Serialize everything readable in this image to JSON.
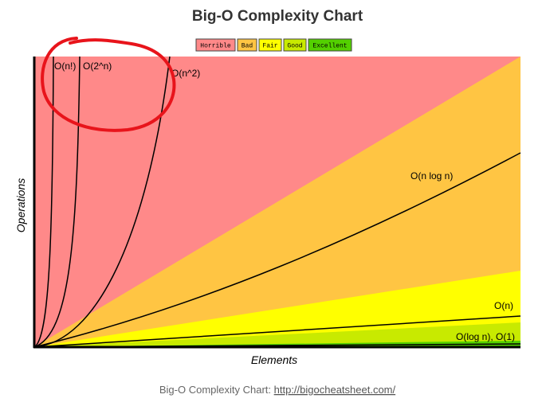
{
  "title": "Big-O Complexity Chart",
  "legend": [
    "Horrible",
    "Bad",
    "Fair",
    "Good",
    "Excellent"
  ],
  "curve_labels": [
    "O(n!)",
    "O(2^n)",
    "O(n^2)",
    "O(n log n)",
    "O(n)",
    "O(log n), O(1)"
  ],
  "x_label": "Elements",
  "y_label": "Operations",
  "caption": {
    "text": "Big-O Complexity Chart:",
    "link": "http://bigocheatsheet.com/"
  }
}
